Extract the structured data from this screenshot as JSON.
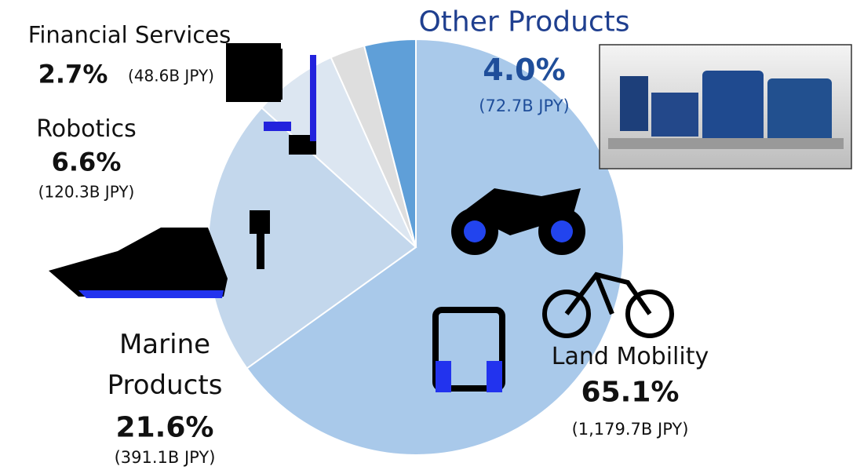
{
  "chart_data": {
    "type": "pie",
    "categories": [
      "Land Mobility",
      "Marine Products",
      "Robotics",
      "Financial Services",
      "Other Products"
    ],
    "values": [
      65.1,
      21.6,
      6.6,
      2.7,
      4.0
    ],
    "value_labels": [
      "65.1%",
      "21.6%",
      "6.6%",
      "2.7%",
      "4.0%"
    ],
    "amounts": [
      1179.7,
      391.1,
      120.3,
      48.6,
      72.7
    ],
    "amount_labels": [
      "(1,179.7B JPY)",
      "(391.1B JPY)",
      "(120.3B JPY)",
      "(48.6B JPY)",
      "(72.7B JPY)"
    ],
    "colors": [
      "#a9c9ea",
      "#c3d7ec",
      "#dce6f1",
      "#dedede",
      "#5f9fd8"
    ]
  }
}
